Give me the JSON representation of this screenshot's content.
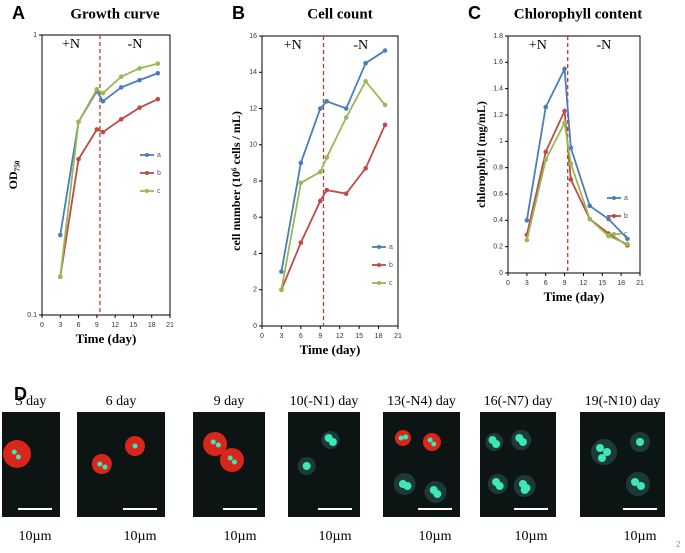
{
  "chart_data": [
    {
      "type": "line",
      "panel": "A",
      "title": "Growth curve",
      "xlabel": "Time (day)",
      "ylabel": "OD₇₅₀",
      "x": [
        3,
        6,
        9,
        10,
        13,
        16,
        19
      ],
      "xlim": [
        0,
        21
      ],
      "xticks": [
        0,
        3,
        6,
        9,
        12,
        15,
        18,
        21
      ],
      "yscale": "log",
      "ylim": [
        0.1,
        1
      ],
      "yticks": [
        0.1,
        1
      ],
      "legend": "right",
      "divider": {
        "x": 9.5,
        "color": "#c0392b"
      },
      "annotations": [
        "+N",
        "-N"
      ],
      "series": [
        {
          "name": "a",
          "color": "#4a7ebb",
          "values": [
            0.193,
            0.49,
            0.63,
            0.58,
            0.65,
            0.69,
            0.73
          ]
        },
        {
          "name": "b",
          "color": "#be4b48",
          "values": [
            0.137,
            0.36,
            0.46,
            0.45,
            0.5,
            0.55,
            0.59
          ]
        },
        {
          "name": "c",
          "color": "#98b954",
          "values": [
            0.137,
            0.49,
            0.64,
            0.62,
            0.71,
            0.76,
            0.79
          ]
        }
      ]
    },
    {
      "type": "line",
      "panel": "B",
      "title": "Cell count",
      "xlabel": "Time (day)",
      "ylabel": "cell number (10⁶ cells / mL)",
      "x": [
        3,
        6,
        9,
        10,
        13,
        16,
        19
      ],
      "xlim": [
        0,
        21
      ],
      "xticks": [
        0,
        3,
        6,
        9,
        12,
        15,
        18,
        21
      ],
      "yscale": "linear",
      "ylim": [
        0,
        16
      ],
      "yticks": [
        0,
        2,
        4,
        6,
        8,
        10,
        12,
        14,
        16
      ],
      "legend": "right",
      "divider": {
        "x": 9.5,
        "color": "#c0392b"
      },
      "annotations": [
        "+N",
        "-N"
      ],
      "series": [
        {
          "name": "a",
          "color": "#4a7ebb",
          "values": [
            3.0,
            9.0,
            12.0,
            12.4,
            12.0,
            14.5,
            15.2
          ]
        },
        {
          "name": "b",
          "color": "#be4b48",
          "values": [
            2.0,
            4.6,
            6.9,
            7.5,
            7.3,
            8.7,
            11.1
          ]
        },
        {
          "name": "c",
          "color": "#98b954",
          "values": [
            2.0,
            7.9,
            8.5,
            9.3,
            11.5,
            13.5,
            12.2
          ]
        }
      ]
    },
    {
      "type": "line",
      "panel": "C",
      "title": "Chlorophyll content",
      "xlabel": "Time (day)",
      "ylabel": "chlorophyll  (mg/mL)",
      "x": [
        3,
        6,
        9,
        10,
        13,
        16,
        19
      ],
      "xlim": [
        0,
        21
      ],
      "xticks": [
        0,
        3,
        6,
        9,
        12,
        15,
        18,
        21
      ],
      "yscale": "linear",
      "ylim": [
        0,
        1.8
      ],
      "yticks": [
        0,
        0.2,
        0.4,
        0.6,
        0.8,
        1,
        1.2,
        1.4,
        1.6,
        1.8
      ],
      "legend": "right",
      "divider": {
        "x": 9.5,
        "color": "#c0392b"
      },
      "annotations": [
        "+N",
        "-N"
      ],
      "series": [
        {
          "name": "a",
          "color": "#4a7ebb",
          "values": [
            0.4,
            1.26,
            1.55,
            0.95,
            0.51,
            0.41,
            0.26
          ]
        },
        {
          "name": "b",
          "color": "#be4b48",
          "values": [
            0.29,
            0.92,
            1.23,
            0.71,
            0.41,
            0.3,
            0.21
          ]
        },
        {
          "name": "c",
          "color": "#98b954",
          "values": [
            0.25,
            0.86,
            1.14,
            0.83,
            0.41,
            0.28,
            0.22
          ]
        }
      ]
    }
  ],
  "panel_d": {
    "label": "D",
    "images": [
      {
        "caption": "3 day",
        "scale": "10µm"
      },
      {
        "caption": "6 day",
        "scale": "10µm"
      },
      {
        "caption": "9 day",
        "scale": "10µm"
      },
      {
        "caption": "10(-N1) day",
        "scale": "10µm"
      },
      {
        "caption": "13(-N4) day",
        "scale": "10µm"
      },
      {
        "caption": "16(-N7) day",
        "scale": "10µm"
      },
      {
        "caption": "19(-N10) day",
        "scale": "10µm"
      }
    ]
  },
  "page_number": "2"
}
